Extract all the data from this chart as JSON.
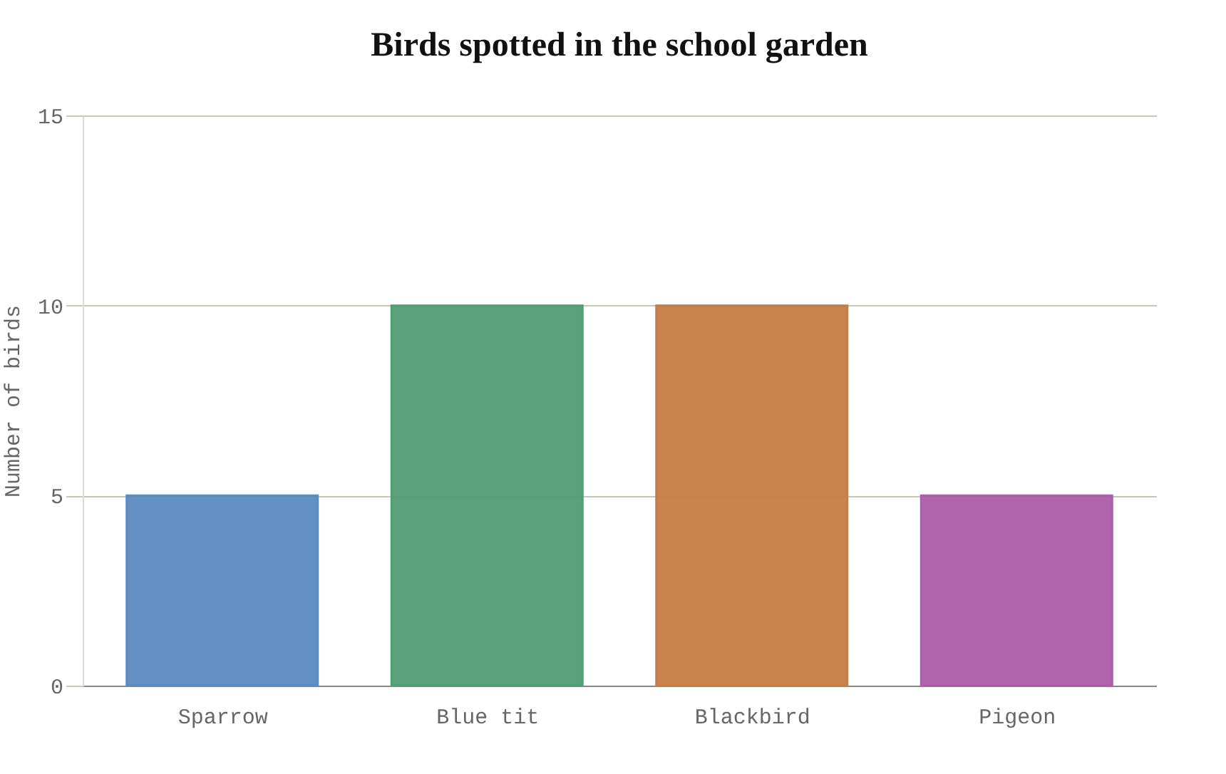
{
  "chart_data": {
    "type": "bar",
    "title": "Birds spotted in the school garden",
    "ylabel": "Number of birds",
    "categories": [
      "Sparrow",
      "Blue tit",
      "Blackbird",
      "Pigeon"
    ],
    "values": [
      5,
      10,
      10,
      5
    ],
    "colors": [
      "#5b8bc0",
      "#529c74",
      "#c67d45",
      "#ac5ca8"
    ],
    "ylim": [
      0,
      15
    ],
    "yticks": [
      0,
      5,
      10,
      15
    ],
    "grid": "y"
  }
}
